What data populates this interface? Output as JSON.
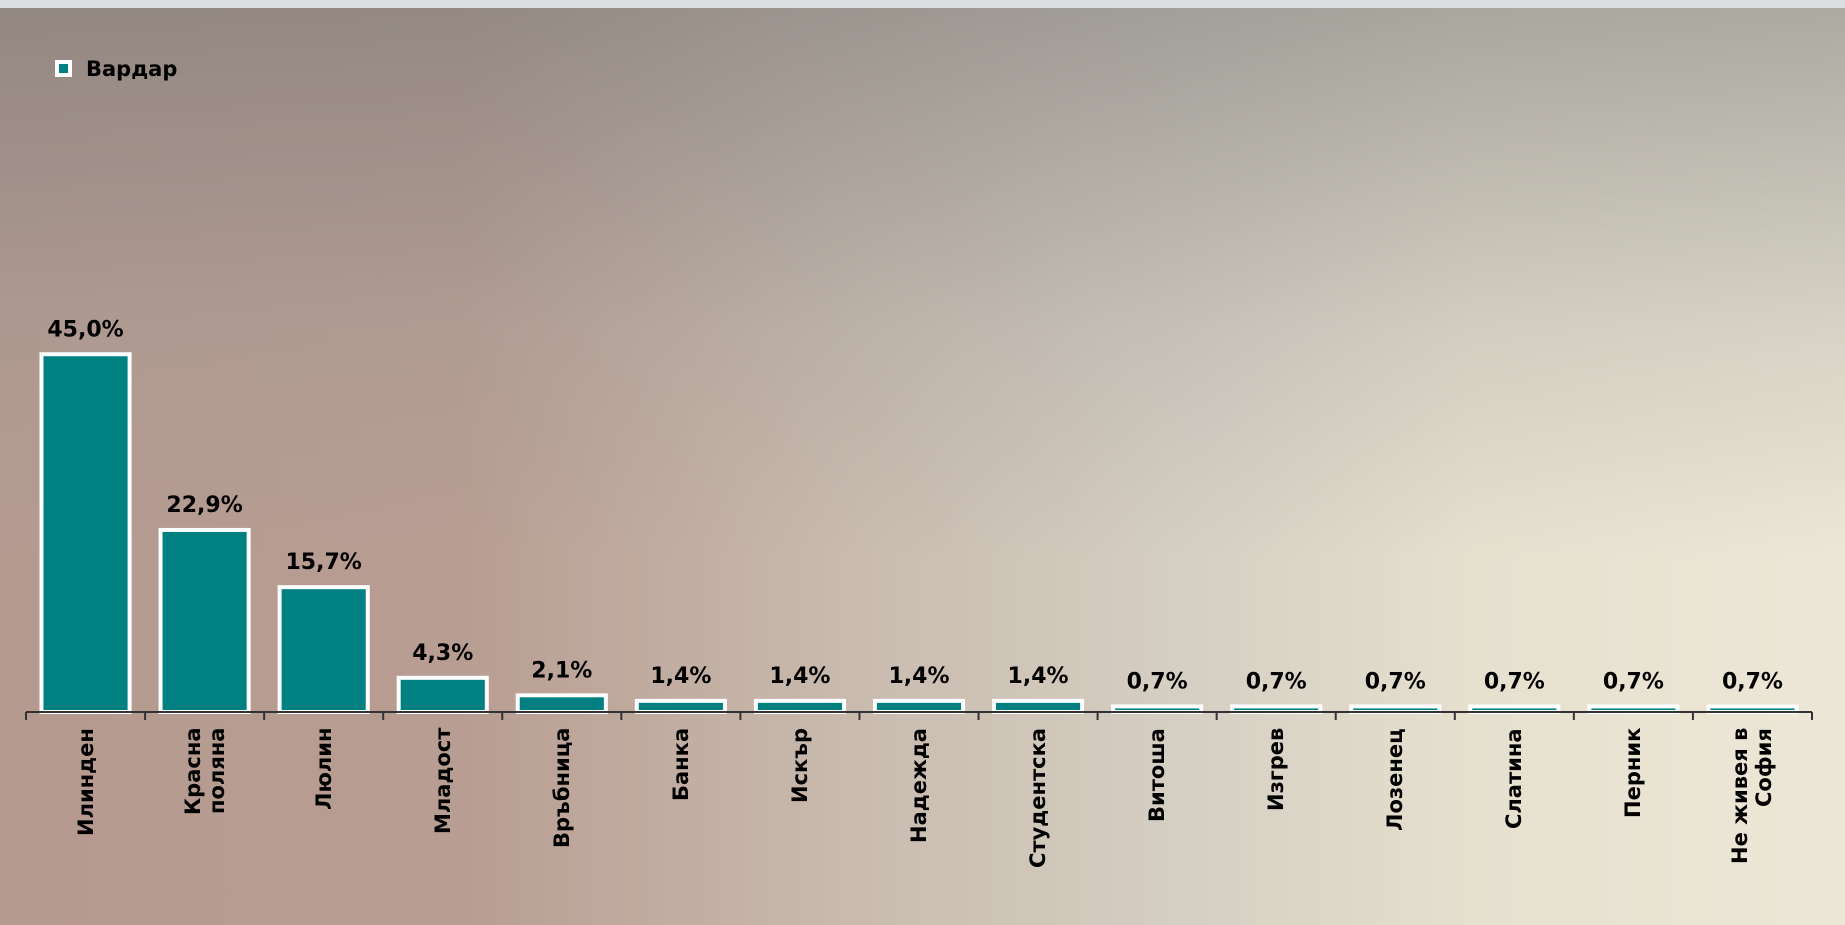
{
  "chart_data": {
    "type": "bar",
    "categories": [
      "Илинден",
      "Красна поляна",
      "Люлин",
      "Младост",
      "Връбница",
      "Банка",
      "Искър",
      "Надежда",
      "Студентска",
      "Витоша",
      "Изгрев",
      "Лозенец",
      "Слатина",
      "Перник",
      "Не живея в София"
    ],
    "series": [
      {
        "name": "Вардар",
        "color": "#008080",
        "values": [
          45.0,
          22.9,
          15.7,
          4.3,
          2.1,
          1.4,
          1.4,
          1.4,
          1.4,
          0.7,
          0.7,
          0.7,
          0.7,
          0.7,
          0.7
        ],
        "value_labels": [
          "45,0%",
          "22,9%",
          "15,7%",
          "4,3%",
          "2,1%",
          "1,4%",
          "1,4%",
          "1,4%",
          "1,4%",
          "0,7%",
          "0,7%",
          "0,7%",
          "0,7%",
          "0,7%",
          "0,7%"
        ]
      }
    ],
    "legend": "top-left"
  }
}
